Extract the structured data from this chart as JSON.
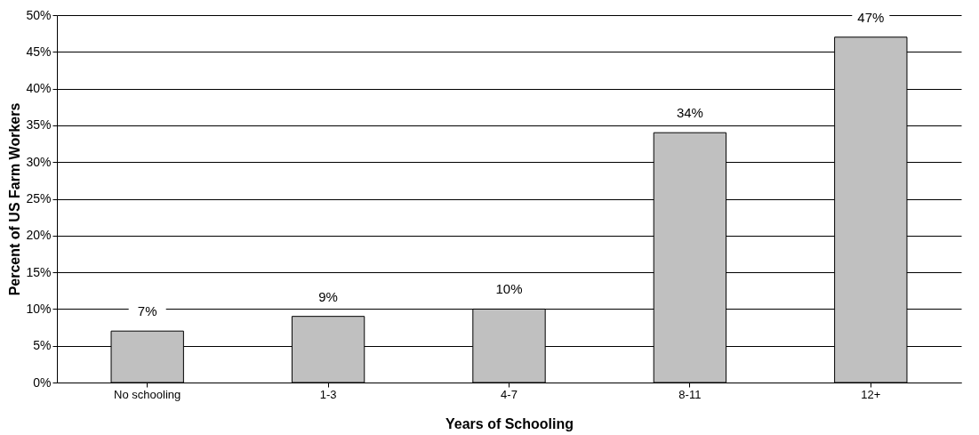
{
  "chart_data": {
    "type": "bar",
    "xlabel": "Years of Schooling",
    "ylabel": "Percent of US Farm Workers",
    "categories": [
      "No schooling",
      "1-3",
      "4-7",
      "8-11",
      "12+"
    ],
    "values": [
      7,
      9,
      10,
      34,
      47
    ],
    "color": "#c0c0c0",
    "value_labels": [
      "7%",
      "9%",
      "10%",
      "34%",
      "47%"
    ],
    "ylim": [
      0,
      50
    ],
    "yticks": [
      {
        "value": 0,
        "label": "0%"
      },
      {
        "value": 5,
        "label": "5%"
      },
      {
        "value": 10,
        "label": "10%"
      },
      {
        "value": 15,
        "label": "15%"
      },
      {
        "value": 20,
        "label": "20%"
      },
      {
        "value": 25,
        "label": "25%"
      },
      {
        "value": 30,
        "label": "30%"
      },
      {
        "value": 35,
        "label": "35%"
      },
      {
        "value": 40,
        "label": "40%"
      },
      {
        "value": 45,
        "label": "45%"
      },
      {
        "value": 50,
        "label": "50%"
      }
    ],
    "grid": "y"
  }
}
